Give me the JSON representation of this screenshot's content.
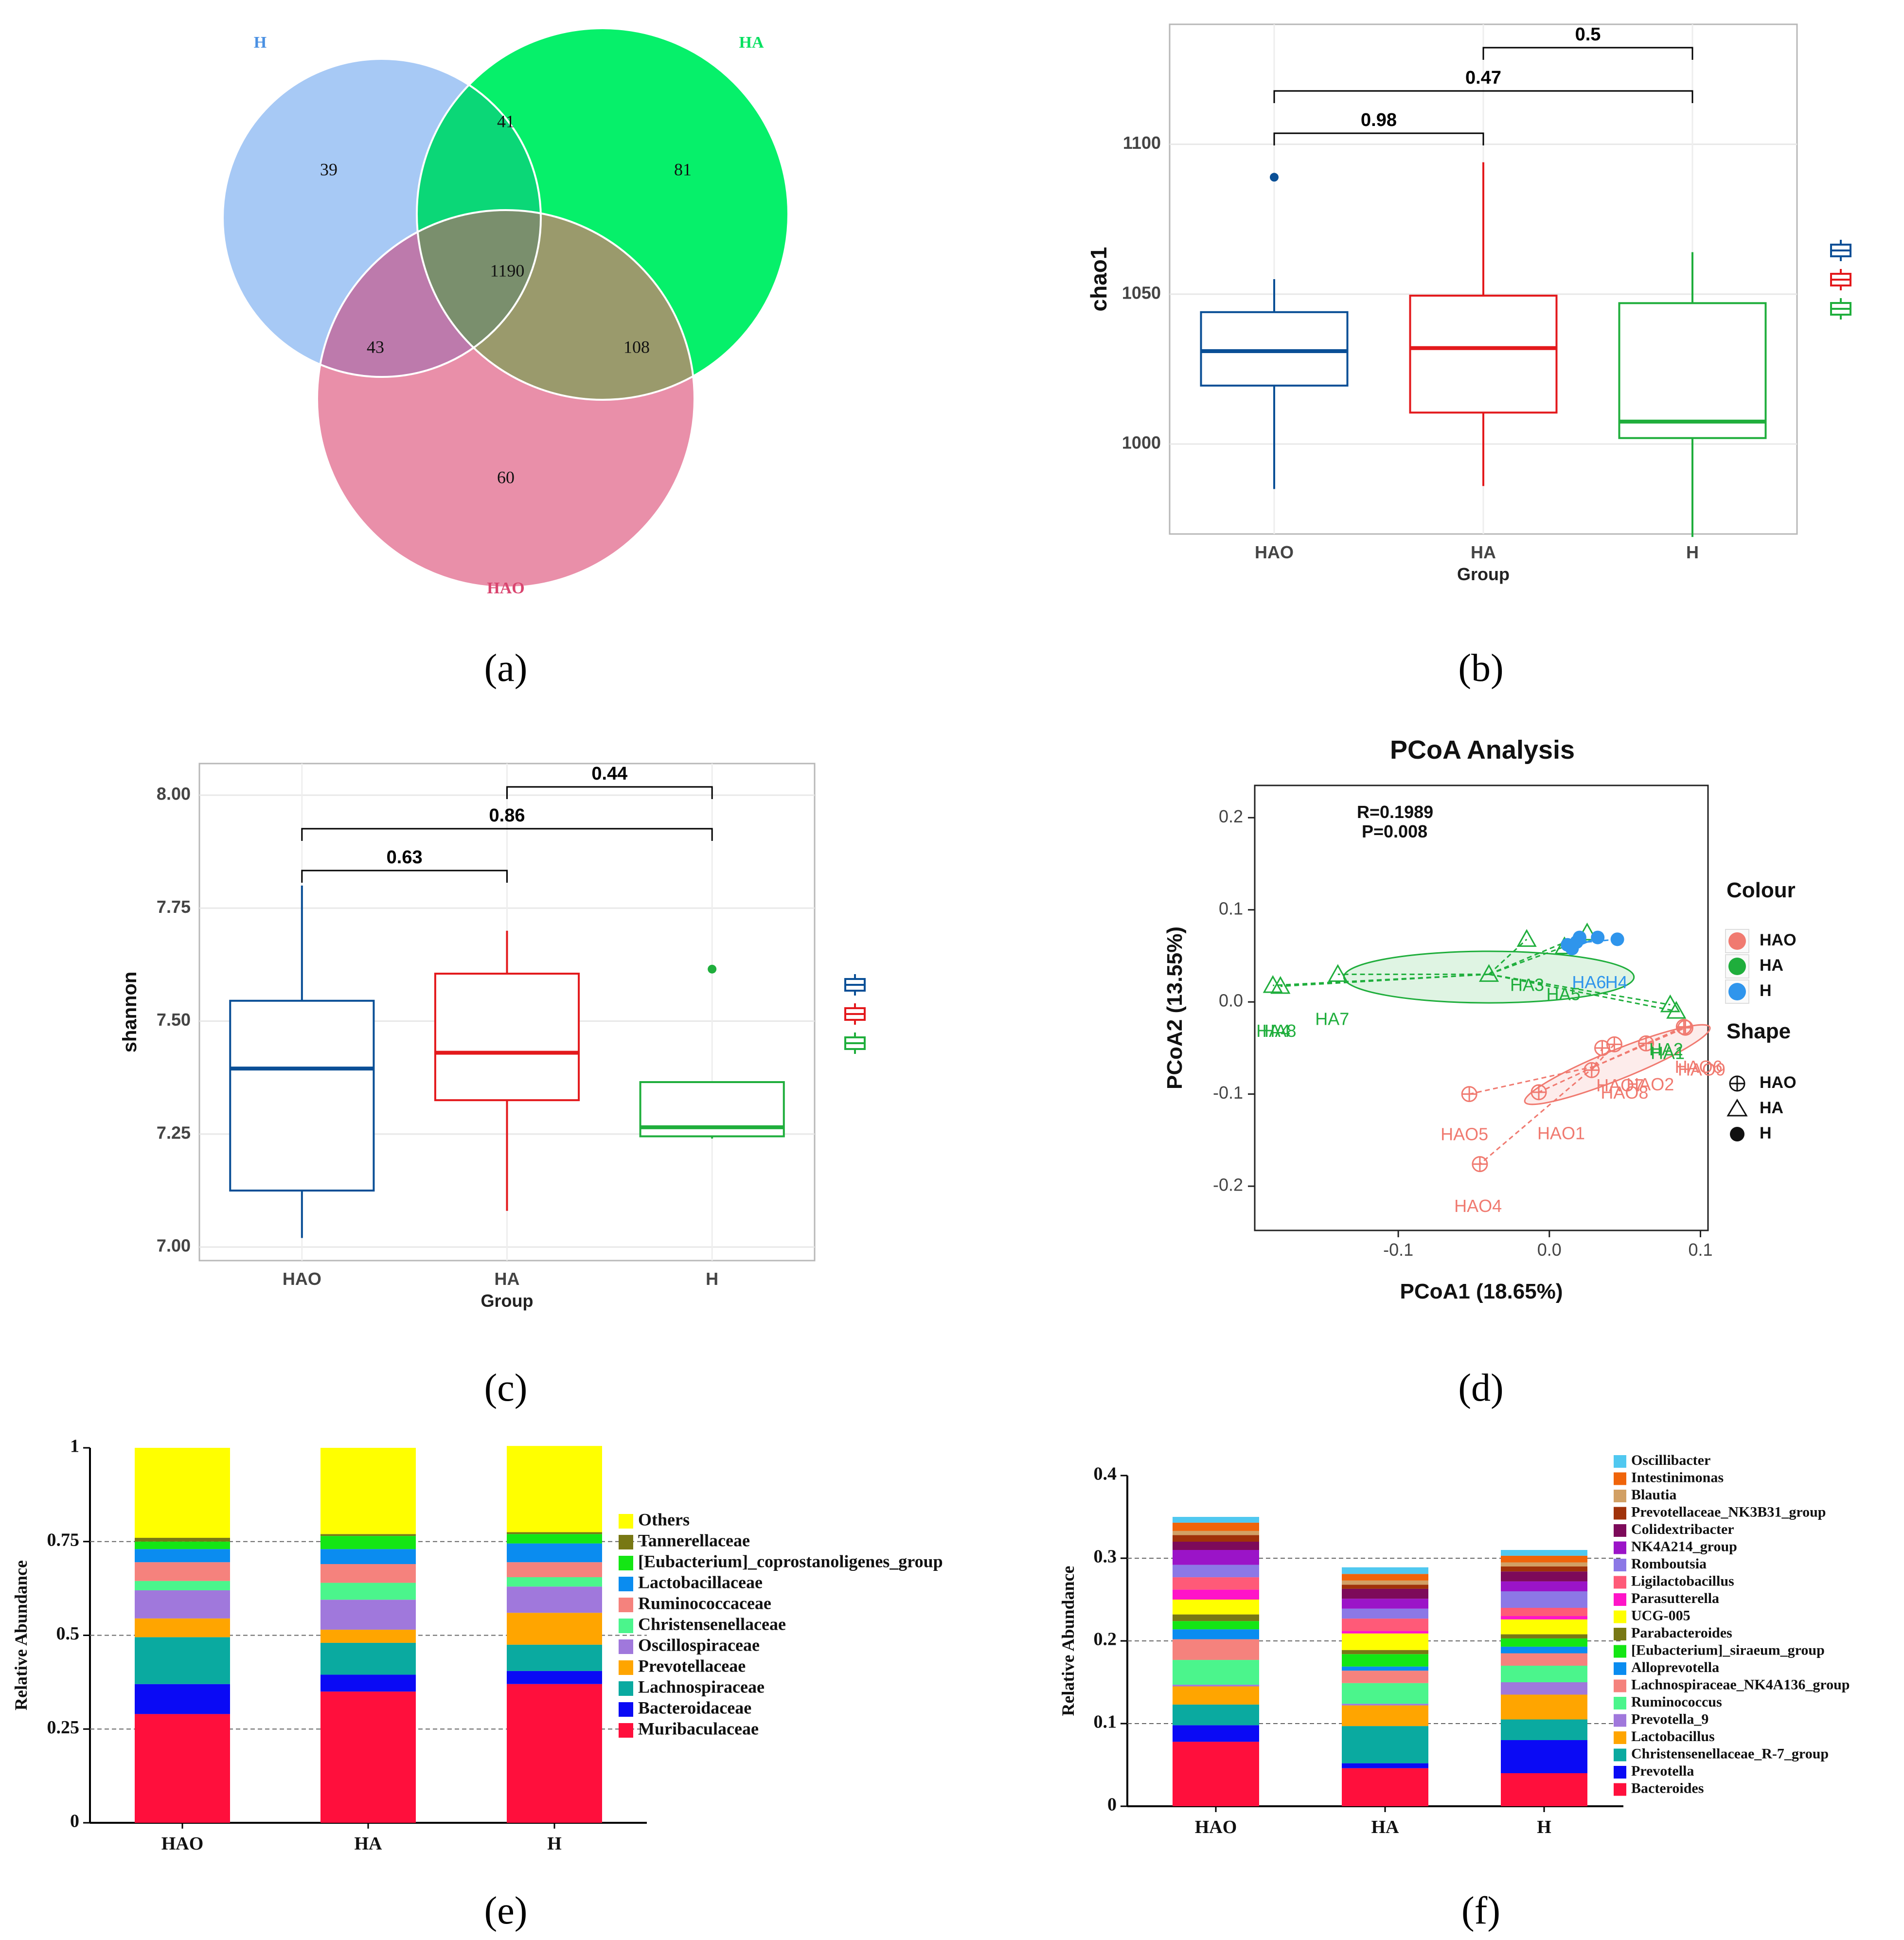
{
  "figure": {
    "panel_labels": [
      "(a)",
      "(b)",
      "(c)",
      "(d)",
      "(e)",
      "(f)"
    ]
  },
  "colors": {
    "HAO_box": "#0a4f96",
    "HA_box": "#e3191c",
    "H_box": "#1fae3c",
    "venn_H": "#a7c9f5",
    "venn_HA": "#06f06a",
    "venn_HAO": "#e98fa9",
    "pcoa_HAO": "#f07a70",
    "pcoa_HA": "#1fae3c",
    "pcoa_H": "#2f95ec"
  },
  "chart_data": [
    {
      "type": "venn",
      "panel": "(a)",
      "sets": [
        "H",
        "HA",
        "HAO"
      ],
      "regions": {
        "H_only": 39,
        "HA_only": 81,
        "HAO_only": 60,
        "H_HA": 41,
        "H_HAO": 43,
        "HA_HAO": 108,
        "all": 1190
      }
    },
    {
      "type": "box",
      "panel": "(b)",
      "xlabel": "Group",
      "ylabel": "chao1",
      "categories": [
        "HAO",
        "HA",
        "H"
      ],
      "ylim": [
        970,
        1140
      ],
      "yticks": [
        1000,
        1050,
        1100
      ],
      "boxes": [
        {
          "name": "HAO",
          "min": 985,
          "q1": 1019.5,
          "median": 1031,
          "q3": 1044,
          "max": 1055,
          "outliers": [
            1089
          ]
        },
        {
          "name": "HA",
          "min": 986,
          "q1": 1010.5,
          "median": 1032,
          "q3": 1049.5,
          "max": 1094,
          "outliers": []
        },
        {
          "name": "H",
          "min": 969,
          "q1": 1002,
          "median": 1007.5,
          "q3": 1047,
          "max": 1064,
          "outliers": []
        }
      ],
      "comparisons": [
        {
          "from": "HAO",
          "to": "HA",
          "label": "0.98",
          "level": 1
        },
        {
          "from": "HAO",
          "to": "H",
          "label": "0.47",
          "level": 2
        },
        {
          "from": "HA",
          "to": "H",
          "label": "0.5",
          "level": 3
        }
      ]
    },
    {
      "type": "box",
      "panel": "(c)",
      "xlabel": "Group",
      "ylabel": "shannon",
      "categories": [
        "HAO",
        "HA",
        "H"
      ],
      "ylim": [
        6.97,
        8.07
      ],
      "yticks": [
        7.0,
        7.25,
        7.5,
        7.75,
        8.0
      ],
      "ytick_labels": [
        "7.00",
        "7.25",
        "7.50",
        "7.75",
        "8.00"
      ],
      "boxes": [
        {
          "name": "HAO",
          "min": 7.02,
          "q1": 7.125,
          "median": 7.395,
          "q3": 7.545,
          "max": 7.8,
          "outliers": []
        },
        {
          "name": "HA",
          "min": 7.08,
          "q1": 7.325,
          "median": 7.43,
          "q3": 7.605,
          "max": 7.7,
          "outliers": []
        },
        {
          "name": "H",
          "min": 7.24,
          "q1": 7.245,
          "median": 7.265,
          "q3": 7.365,
          "max": 7.365,
          "outliers": [
            7.615
          ]
        }
      ],
      "comparisons": [
        {
          "from": "HAO",
          "to": "HA",
          "label": "0.63",
          "level": 1
        },
        {
          "from": "HAO",
          "to": "H",
          "label": "0.86",
          "level": 2
        },
        {
          "from": "HA",
          "to": "H",
          "label": "0.44",
          "level": 3
        }
      ]
    },
    {
      "type": "scatter",
      "panel": "(d)",
      "title": "PCoA Analysis",
      "xlabel": "PCoA1 (18.65%)",
      "ylabel": "PCoA2 (13.55%)",
      "xlim": [
        -0.195,
        0.105
      ],
      "ylim": [
        -0.248,
        0.235
      ],
      "xticks": [
        -0.1,
        0.0,
        0.1
      ],
      "xtick_labels": [
        "-0.1",
        "0.0",
        "0.1"
      ],
      "yticks": [
        -0.2,
        -0.1,
        0.0,
        0.1,
        0.2
      ],
      "ytick_labels": [
        "-0.2",
        "-0.1",
        "0.0",
        "0.1",
        "0.2"
      ],
      "stats": [
        "R=0.1989",
        "P=0.008"
      ],
      "legend": {
        "colour_title": "Colour",
        "shape_title": "Shape",
        "groups": [
          "HAO",
          "HA",
          "H"
        ]
      },
      "groups": [
        {
          "name": "HA",
          "shape": "triangle",
          "centroid": [
            -0.04,
            0.03
          ],
          "ellipse": {
            "cx": -0.04,
            "cy": 0.027,
            "rx": 0.096,
            "ry": 0.028,
            "angle": 0
          },
          "points": [
            {
              "label": "HA1",
              "x": 0.08,
              "y": -0.003,
              "label_x": 0.066,
              "label_y": -0.063
            },
            {
              "label": "HA2",
              "x": 0.084,
              "y": -0.01,
              "label_x": 0.067,
              "label_y": -0.058
            },
            {
              "label": "HA3",
              "x": -0.04,
              "y": 0.03,
              "label_x": -0.026,
              "label_y": 0.012
            },
            {
              "label": "HA4",
              "x": -0.183,
              "y": 0.018,
              "label_x": -0.194,
              "label_y": -0.038
            },
            {
              "label": "HA5",
              "x": 0.01,
              "y": 0.06,
              "label_x": -0.002,
              "label_y": 0.003
            },
            {
              "label": "HA6",
              "x": -0.015,
              "y": 0.068,
              "label_x": 0.014,
              "label_y": 0.015
            },
            {
              "label": "HA7",
              "x": -0.14,
              "y": 0.03,
              "label_x": -0.155,
              "label_y": -0.025
            },
            {
              "label": "HA8",
              "x": -0.178,
              "y": 0.017,
              "label_x": -0.19,
              "label_y": -0.038
            },
            {
              "label": "HA9",
              "x": 0.025,
              "y": 0.075,
              "label_x": 0.005,
              "label_y": 0.01
            }
          ]
        },
        {
          "name": "H",
          "shape": "circle",
          "centroid": [
            0.025,
            0.065
          ],
          "points": [
            {
              "label": "H4",
              "x": 0.045,
              "y": 0.068,
              "label_x": 0.037,
              "label_y": 0.015
            },
            {
              "label": "H5",
              "x": 0.012,
              "y": 0.062,
              "label_x": 0.014,
              "label_y": 0.005
            },
            {
              "label": "H6",
              "x": 0.018,
              "y": 0.065,
              "label_x": 0.016,
              "label_y": 0.018
            },
            {
              "label": "H1",
              "x": 0.02,
              "y": 0.07,
              "label_x": 0.02,
              "label_y": 0.01
            },
            {
              "label": "H2",
              "x": 0.032,
              "y": 0.07,
              "label_x": 0.03,
              "label_y": 0.013
            },
            {
              "label": "H3",
              "x": 0.015,
              "y": 0.058,
              "label_x": 0.012,
              "label_y": 0.01
            }
          ]
        },
        {
          "name": "HAO",
          "shape": "circle-plus",
          "centroid": [
            0.03,
            -0.07
          ],
          "ellipse": {
            "cx": 0.045,
            "cy": -0.068,
            "rx": 0.066,
            "ry": 0.016,
            "angle": -22
          },
          "points": [
            {
              "label": "HAO1",
              "x": -0.007,
              "y": -0.098,
              "label_x": -0.008,
              "label_y": -0.148
            },
            {
              "label": "HAO2",
              "x": 0.064,
              "y": -0.045,
              "label_x": 0.05,
              "label_y": -0.095
            },
            {
              "label": "HAO3",
              "x": 0.043,
              "y": -0.046,
              "label_x": 0.03,
              "label_y": -0.096
            },
            {
              "label": "HAO4",
              "x": -0.046,
              "y": -0.176,
              "label_x": -0.063,
              "label_y": -0.228
            },
            {
              "label": "HAO5",
              "x": -0.053,
              "y": -0.1,
              "label_x": -0.072,
              "label_y": -0.15
            },
            {
              "label": "HAO6",
              "x": 0.089,
              "y": -0.027,
              "label_x": 0.08,
              "label_y": -0.077
            },
            {
              "label": "HAO7",
              "x": 0.035,
              "y": -0.05,
              "label_x": 0.035,
              "label_y": -0.1
            },
            {
              "label": "HAO8",
              "x": 0.028,
              "y": -0.074,
              "label_x": 0.013,
              "label_y": -0.103
            },
            {
              "label": "HAO9",
              "x": 0.09,
              "y": -0.028,
              "label_x": 0.082,
              "label_y": -0.082
            }
          ]
        }
      ],
      "visible_point_labels": [
        {
          "text": "HA4",
          "x": -0.194,
          "y": -0.038,
          "color": "HA"
        },
        {
          "text": "HA8",
          "x": -0.19,
          "y": -0.038,
          "color": "HA"
        },
        {
          "text": "HA7",
          "x": -0.155,
          "y": -0.025,
          "color": "HA"
        },
        {
          "text": "HA3",
          "x": -0.026,
          "y": 0.012,
          "color": "HA"
        },
        {
          "text": "HA5",
          "x": -0.002,
          "y": 0.002,
          "color": "HA"
        },
        {
          "text": "HA6",
          "x": 0.015,
          "y": 0.015,
          "color": "H"
        },
        {
          "text": "H4",
          "x": 0.037,
          "y": 0.015,
          "color": "H"
        },
        {
          "text": "HA1",
          "x": 0.067,
          "y": -0.062,
          "color": "HA"
        },
        {
          "text": "HA2",
          "x": 0.066,
          "y": -0.058,
          "color": "HA"
        },
        {
          "text": "HAO6",
          "x": 0.083,
          "y": -0.077,
          "color": "HAO"
        },
        {
          "text": "HAO9",
          "x": 0.085,
          "y": -0.08,
          "color": "HAO"
        },
        {
          "text": "HAO7",
          "x": 0.031,
          "y": -0.097,
          "color": "HAO"
        },
        {
          "text": "HAO2",
          "x": 0.051,
          "y": -0.096,
          "color": "HAO"
        },
        {
          "text": "HAO8",
          "x": 0.034,
          "y": -0.105,
          "color": "HAO"
        },
        {
          "text": "HAO5",
          "x": -0.072,
          "y": -0.15,
          "color": "HAO"
        },
        {
          "text": "HAO1",
          "x": -0.008,
          "y": -0.149,
          "color": "HAO"
        },
        {
          "text": "HAO4",
          "x": -0.063,
          "y": -0.228,
          "color": "HAO"
        }
      ]
    },
    {
      "type": "stacked-bar",
      "panel": "(e)",
      "ylabel": "Relative Abundance",
      "categories": [
        "HAO",
        "HA",
        "H"
      ],
      "ylim": [
        0,
        1
      ],
      "yticks": [
        0,
        0.25,
        0.5,
        0.75,
        1
      ],
      "ytick_labels": [
        "0",
        "0.25",
        "0.5",
        "0.75",
        "1"
      ],
      "series": [
        {
          "name": "Muribaculaceae",
          "color": "#ff0f3c",
          "values": [
            0.29,
            0.35,
            0.37
          ]
        },
        {
          "name": "Bacteroidaceae",
          "color": "#0a0af5",
          "values": [
            0.08,
            0.045,
            0.035
          ]
        },
        {
          "name": "Lachnospiraceae",
          "color": "#0aaaa0",
          "values": [
            0.125,
            0.085,
            0.07
          ]
        },
        {
          "name": "Prevotellaceae",
          "color": "#ffa500",
          "values": [
            0.05,
            0.035,
            0.085
          ]
        },
        {
          "name": "Oscillospiraceae",
          "color": "#a078dc",
          "values": [
            0.075,
            0.08,
            0.07
          ]
        },
        {
          "name": "Christensenellaceae",
          "color": "#4bf58c",
          "values": [
            0.025,
            0.045,
            0.025
          ]
        },
        {
          "name": "Ruminococcaceae",
          "color": "#f5827d",
          "values": [
            0.05,
            0.05,
            0.04
          ]
        },
        {
          "name": "Lactobacillaceae",
          "color": "#0a8cf0",
          "values": [
            0.035,
            0.04,
            0.05
          ]
        },
        {
          "name": "[Eubacterium]_coprostanoligenes_group",
          "color": "#14e614",
          "values": [
            0.02,
            0.035,
            0.025
          ]
        },
        {
          "name": "Tannerellaceae",
          "color": "#787814",
          "values": [
            0.01,
            0.005,
            0.005
          ]
        },
        {
          "name": "Others",
          "color": "#ffff00",
          "values": [
            0.24,
            0.23,
            0.23
          ]
        }
      ],
      "legend_order": [
        "Others",
        "Tannerellaceae",
        "[Eubacterium]_coprostanoligenes_group",
        "Lactobacillaceae",
        "Ruminococcaceae",
        "Christensenellaceae",
        "Oscillospiraceae",
        "Prevotellaceae",
        "Lachnospiraceae",
        "Bacteroidaceae",
        "Muribaculaceae"
      ]
    },
    {
      "type": "stacked-bar",
      "panel": "(f)",
      "ylabel": "Relative Abundance",
      "categories": [
        "HAO",
        "HA",
        "H"
      ],
      "ylim": [
        0,
        0.4
      ],
      "yticks": [
        0,
        0.1,
        0.2,
        0.3,
        0.4
      ],
      "ytick_labels": [
        "0",
        "0.1",
        "0.2",
        "0.3",
        "0.4"
      ],
      "series": [
        {
          "name": "Bacteroides",
          "color": "#ff0f3c",
          "values": [
            0.078,
            0.046,
            0.04
          ]
        },
        {
          "name": "Prevotella",
          "color": "#0a0af5",
          "values": [
            0.02,
            0.006,
            0.04
          ]
        },
        {
          "name": "Christensenellaceae_R-7_group",
          "color": "#0aaaa0",
          "values": [
            0.025,
            0.045,
            0.025
          ]
        },
        {
          "name": "Lactobacillus",
          "color": "#ffa500",
          "values": [
            0.022,
            0.025,
            0.03
          ]
        },
        {
          "name": "Prevotella_9",
          "color": "#a078dc",
          "values": [
            0.002,
            0.002,
            0.015
          ]
        },
        {
          "name": "Ruminococcus",
          "color": "#4bf58c",
          "values": [
            0.03,
            0.025,
            0.02
          ]
        },
        {
          "name": "Lachnospiraceae_NK4A136_group",
          "color": "#f5827d",
          "values": [
            0.025,
            0.015,
            0.015
          ]
        },
        {
          "name": "Alloprevotella",
          "color": "#0a8cf0",
          "values": [
            0.012,
            0.005,
            0.008
          ]
        },
        {
          "name": "[Eubacterium]_siraeum_group",
          "color": "#14e614",
          "values": [
            0.01,
            0.015,
            0.01
          ]
        },
        {
          "name": "Parabacteroides",
          "color": "#787814",
          "values": [
            0.008,
            0.005,
            0.005
          ]
        },
        {
          "name": "UCG-005",
          "color": "#ffff00",
          "values": [
            0.018,
            0.02,
            0.018
          ]
        },
        {
          "name": "Parasutterella",
          "color": "#ff14c8",
          "values": [
            0.012,
            0.003,
            0.004
          ]
        },
        {
          "name": "Ligilactobacillus",
          "color": "#ff5a78",
          "values": [
            0.015,
            0.015,
            0.01
          ]
        },
        {
          "name": "Romboutsia",
          "color": "#8c78e6",
          "values": [
            0.015,
            0.012,
            0.02
          ]
        },
        {
          "name": "NK4A214_group",
          "color": "#9b14c8",
          "values": [
            0.018,
            0.012,
            0.012
          ]
        },
        {
          "name": "Colidextribacter",
          "color": "#7d0a5a",
          "values": [
            0.01,
            0.012,
            0.012
          ]
        },
        {
          "name": "Prevotellaceae_NK3B31_group",
          "color": "#a0320a",
          "values": [
            0.008,
            0.005,
            0.006
          ]
        },
        {
          "name": "Blautia",
          "color": "#d2a064",
          "values": [
            0.005,
            0.005,
            0.005
          ]
        },
        {
          "name": "Intestinimonas",
          "color": "#f0640a",
          "values": [
            0.01,
            0.008,
            0.008
          ]
        },
        {
          "name": "Oscillibacter",
          "color": "#50c8f0",
          "values": [
            0.007,
            0.008,
            0.007
          ]
        }
      ],
      "legend_order": [
        "Oscillibacter",
        "Intestinimonas",
        "Blautia",
        "Prevotellaceae_NK3B31_group",
        "Colidextribacter",
        "NK4A214_group",
        "Romboutsia",
        "Ligilactobacillus",
        "Parasutterella",
        "UCG-005",
        "Parabacteroides",
        "[Eubacterium]_siraeum_group",
        "Alloprevotella",
        "Lachnospiraceae_NK4A136_group",
        "Ruminococcus",
        "Prevotella_9",
        "Lactobacillus",
        "Christensenellaceae_R-7_group",
        "Prevotella",
        "Bacteroides"
      ]
    }
  ]
}
